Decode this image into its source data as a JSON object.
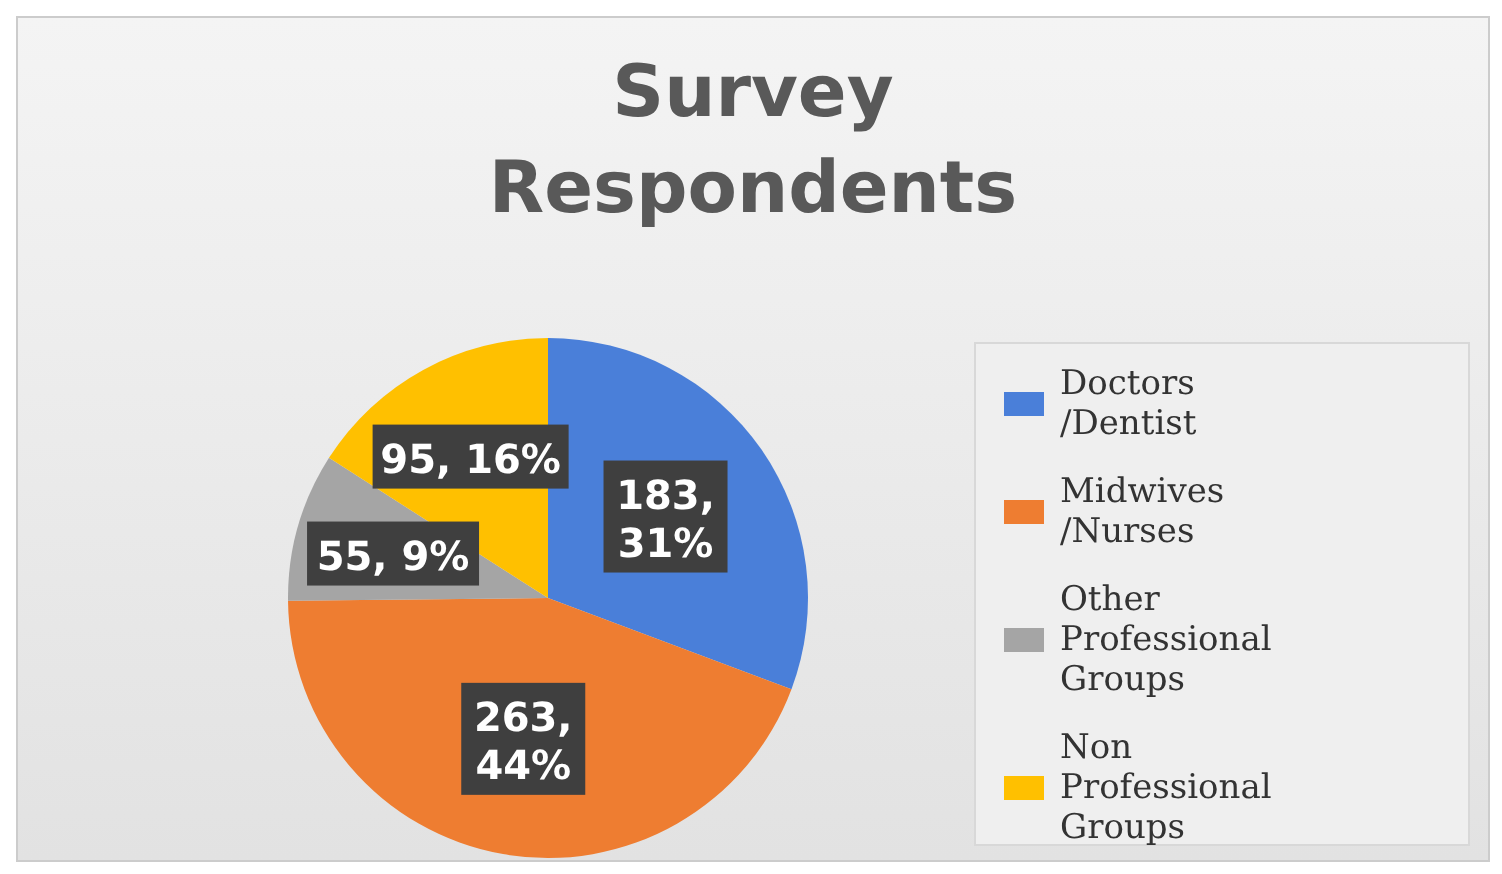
{
  "chart_data": {
    "type": "pie",
    "title": "Survey Respondents",
    "categories": [
      "Doctors /Dentist",
      "Midwives /Nurses",
      "Other Professional Groups",
      "Non Professional Groups"
    ],
    "values": [
      183,
      263,
      55,
      95
    ],
    "colors": [
      "#4a7fd9",
      "#ee7d31",
      "#a5a5a5",
      "#ffc000"
    ],
    "value_labels": [
      "183, 31%",
      "263, 44%",
      "55, 9%",
      "95, 16%"
    ],
    "legend": "right"
  }
}
